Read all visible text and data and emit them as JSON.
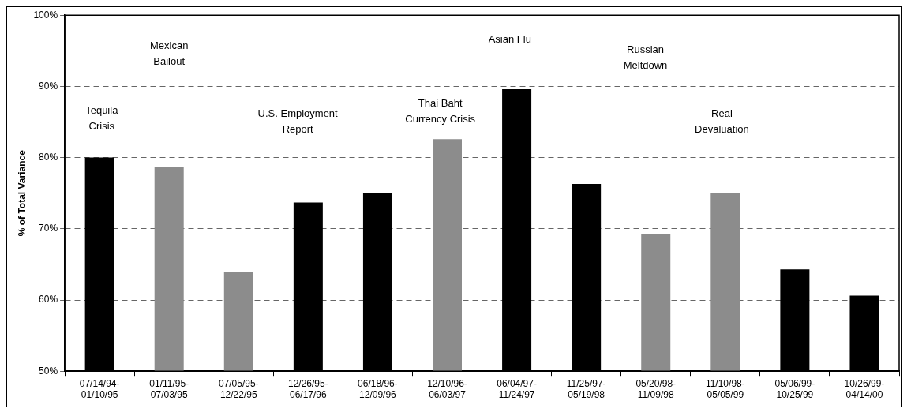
{
  "chart_data": {
    "type": "bar",
    "ylabel": "% of Total Variance",
    "categories": [
      "07/14/94-01/10/95",
      "01/11/95-07/03/95",
      "07/05/95-12/22/95",
      "12/26/95-06/17/96",
      "06/18/96-12/09/96",
      "12/10/96-06/03/97",
      "06/04/97-11/24/97",
      "11/25/97-05/19/98",
      "05/20/98-11/09/98",
      "11/10/98-05/05/99",
      "05/06/99-10/25/99",
      "10/26/99-04/14/00"
    ],
    "values": [
      80.0,
      78.7,
      64.0,
      73.7,
      75.0,
      82.6,
      89.6,
      76.3,
      69.2,
      75.0,
      64.3,
      60.6
    ],
    "colors": [
      "#000000",
      "#8c8c8c",
      "#8c8c8c",
      "#000000",
      "#000000",
      "#8c8c8c",
      "#000000",
      "#000000",
      "#8c8c8c",
      "#8c8c8c",
      "#000000",
      "#000000"
    ],
    "ylim": [
      50,
      100
    ],
    "yticks": [
      {
        "value": 50,
        "label": "50%"
      },
      {
        "value": 60,
        "label": "60%"
      },
      {
        "value": 70,
        "label": "70%"
      },
      {
        "value": 80,
        "label": "80%"
      },
      {
        "value": 90,
        "label": "90%"
      },
      {
        "value": 100,
        "label": "100%"
      }
    ],
    "grid": "y",
    "legend": false,
    "annotations": [
      "Tequila\nCrisis",
      "Mexican\nBailout",
      "U.S. Employment\nReport",
      "Thai Baht\nCurrency Crisis",
      "Asian Flu",
      "Russian\nMeltdown",
      "Real\nDevaluation"
    ]
  }
}
